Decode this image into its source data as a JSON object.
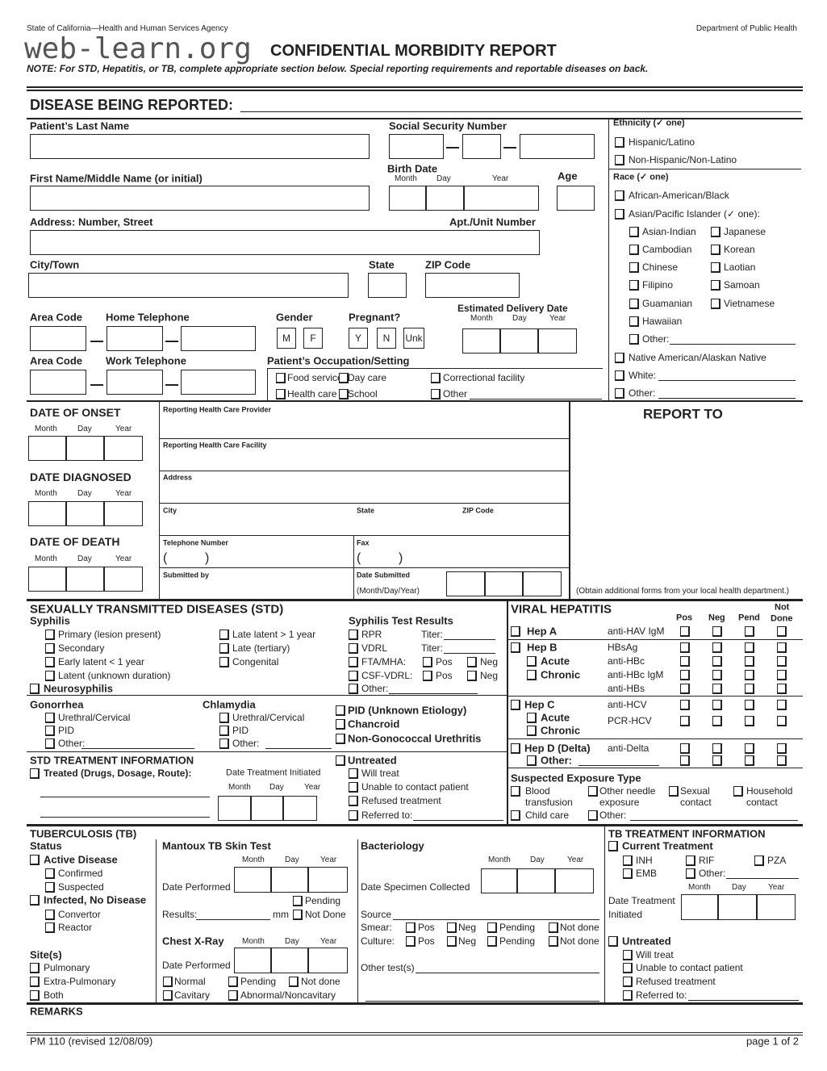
{
  "header": {
    "agency": "State of California—Health and Human Services Agency",
    "department": "Department of Public Health",
    "watermark": "web-learn.org",
    "title": "CONFIDENTIAL MORBIDITY REPORT",
    "note": "NOTE:  For STD, Hepatitis, or TB, complete appropriate section below.  Special reporting requirements and reportable diseases on back."
  },
  "disease": {
    "label": "DISEASE BEING REPORTED:"
  },
  "date_parts": {
    "month": "Month",
    "day": "Day",
    "year": "Year"
  },
  "patient": {
    "last_name": "Patient’s Last Name",
    "ssn": "Social Security Number",
    "first_name": "First Name/Middle Name (or initial)",
    "birth_date": "Birth Date",
    "age": "Age",
    "address": "Address:  Number, Street",
    "apt": "Apt./Unit Number",
    "city": "City/Town",
    "state": "State",
    "zip": "ZIP Code",
    "area_code": "Area Code",
    "home_phone": "Home Telephone",
    "work_phone": "Work Telephone",
    "gender": "Gender",
    "gender_options": [
      "M",
      "F"
    ],
    "pregnant": "Pregnant?",
    "pregnant_options": [
      "Y",
      "N",
      "Unk"
    ],
    "edd": "Estimated Delivery Date",
    "occupation": "Patient’s Occupation/Setting",
    "occupation_options": [
      "Food service",
      "Day care",
      "Correctional facility",
      "Health care",
      "School",
      "Other"
    ]
  },
  "ethnicity": {
    "label": "Ethnicity (✓ one)",
    "options": [
      "Hispanic/Latino",
      "Non-Hispanic/Non-Latino"
    ]
  },
  "race": {
    "label": "Race (✓ one)",
    "african": "African-American/Black",
    "asian": "Asian/Pacific Islander (✓ one):",
    "asian_col1": [
      "Asian-Indian",
      "Cambodian",
      "Chinese",
      "Filipino",
      "Guamanian",
      "Hawaiian",
      "Other:"
    ],
    "asian_col2": [
      "Japanese",
      "Korean",
      "Laotian",
      "Samoan",
      "Vietnamese"
    ],
    "native": "Native American/Alaskan Native",
    "white": "White:",
    "other": "Other:"
  },
  "dates": {
    "onset": "DATE OF ONSET",
    "diagnosed": "DATE DIAGNOSED",
    "death": "DATE OF DEATH"
  },
  "provider": {
    "provider": "Reporting Health Care Provider",
    "facility": "Reporting Health Care Facility",
    "address": "Address",
    "city": "City",
    "state": "State",
    "zip": "ZIP Code",
    "phone": "Telephone Number",
    "fax": "Fax",
    "paren_open": "(",
    "paren_close": ")",
    "submitted_by": "Submitted by",
    "date_submitted": "Date Submitted",
    "date_format": "(Month/Day/Year)"
  },
  "report_to": {
    "title": "REPORT TO",
    "note": "(Obtain additional forms from your local health department.)"
  },
  "std": {
    "title": "SEXUALLY TRANSMITTED DISEASES (STD)",
    "syphilis": "Syphilis",
    "syphilis_col1": [
      "Primary (lesion present)",
      "Secondary",
      "Early latent < 1 year",
      "Latent (unknown duration)"
    ],
    "syphilis_col2": [
      "Late latent > 1 year",
      "Late (tertiary)",
      "Congenital"
    ],
    "neurosyphilis": "Neurosyphilis",
    "test_results": "Syphilis Test Results",
    "tests": [
      "RPR",
      "VDRL",
      "FTA/MHA:",
      "CSF-VDRL:",
      "Other:"
    ],
    "titer": "Titer:",
    "pos": "Pos",
    "neg": "Neg",
    "gonorrhea": "Gonorrhea",
    "chlamydia": "Chlamydia",
    "sub_options": [
      "Urethral/Cervical",
      "PID",
      "Other:"
    ],
    "other_conditions": [
      "PID (Unknown Etiology)",
      "Chancroid",
      "Non-Gonococcal Urethritis"
    ],
    "treatment_title": "STD TREATMENT INFORMATION",
    "treated": "Treated (Drugs, Dosage, Route):",
    "date_initiated": "Date Treatment Initiated",
    "untreated": "Untreated",
    "untreated_options": [
      "Will treat",
      "Unable to contact patient",
      "Refused treatment",
      "Referred to:"
    ]
  },
  "hep": {
    "title": "VIRAL HEPATITIS",
    "columns": [
      "Pos",
      "Neg",
      "Pend",
      "Not",
      "Done"
    ],
    "hep_a": "Hep A",
    "hep_b": "Hep B",
    "hep_c": "Hep C",
    "hep_d": "Hep D (Delta)",
    "acute": "Acute",
    "chronic": "Chronic",
    "other": "Other:",
    "tests": [
      "anti-HAV IgM",
      "HBsAg",
      "anti-HBc",
      "anti-HBc IgM",
      "anti-HBs",
      "anti-HCV",
      "PCR-HCV",
      "anti-Delta"
    ],
    "exposure_title": "Suspected Exposure Type",
    "exposure": {
      "blood": [
        "Blood",
        "transfusion"
      ],
      "needle": [
        "Other needle",
        "exposure"
      ],
      "sexual": [
        "Sexual",
        "contact"
      ],
      "household": [
        "Household",
        "contact"
      ],
      "child_care": "Child care",
      "other": "Other:"
    }
  },
  "tb": {
    "title": "TUBERCULOSIS (TB)",
    "status": "Status",
    "active": "Active Disease",
    "confirmed": "Confirmed",
    "suspected": "Suspected",
    "infected": "Infected, No Disease",
    "convertor": "Convertor",
    "reactor": "Reactor",
    "sites": "Site(s)",
    "site_options": [
      "Pulmonary",
      "Extra-Pulmonary",
      "Both"
    ],
    "mantoux": "Mantoux TB Skin Test",
    "date_performed": "Date Performed",
    "pending": "Pending",
    "results": "Results:",
    "mm": "mm",
    "not_done": "Not Done",
    "xray": "Chest X-Ray",
    "xray_options": [
      "Normal",
      "Pending",
      "Not done",
      "Cavitary",
      "Abnormal/Noncavitary"
    ],
    "bacteriology": "Bacteriology",
    "specimen_date": "Date Specimen Collected",
    "source": "Source",
    "smear": "Smear:",
    "culture": "Culture:",
    "result_options": [
      "Pos",
      "Neg",
      "Pending",
      "Not done"
    ],
    "other_tests": "Other test(s)",
    "treatment_title": "TB TREATMENT INFORMATION",
    "current": "Current Treatment",
    "drugs": [
      "INH",
      "RIF",
      "PZA",
      "EMB",
      "Other:"
    ],
    "date_treatment": "Date Treatment",
    "initiated": "Initiated",
    "untreated": "Untreated",
    "untreated_options": [
      "Will treat",
      "Unable to contact patient",
      "Refused treatment",
      "Referred to:"
    ]
  },
  "footer": {
    "remarks": "REMARKS",
    "form_id": "PM 110 (revised 12/08/09)",
    "page": "page 1 of 2"
  }
}
